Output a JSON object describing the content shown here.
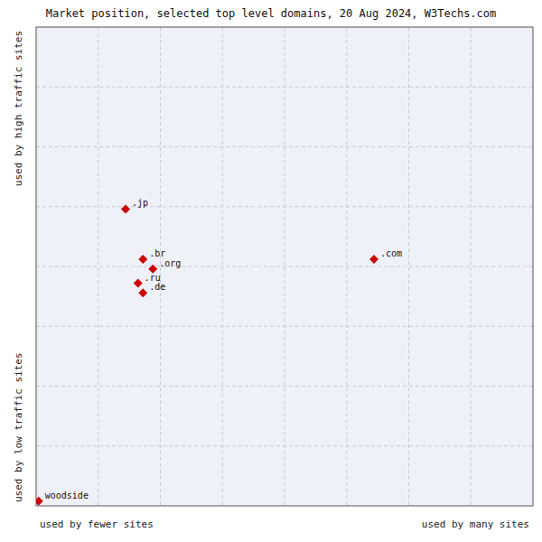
{
  "chart_data": {
    "type": "scatter",
    "title": "Market position, selected top level domains, 20 Aug 2024, W3Techs.com",
    "xlabel_left": "used by fewer sites",
    "xlabel_right": "used by many sites",
    "ylabel_top": "used by high traffic sites",
    "ylabel_bottom": "used by low traffic sites",
    "x": [
      0.18,
      0.215,
      0.235,
      0.205,
      0.215,
      0.68,
      0.005
    ],
    "values": [
      0.62,
      0.515,
      0.495,
      0.465,
      0.445,
      0.515,
      0.01
    ],
    "annotations": [
      ".jp",
      ".br",
      ".org",
      ".ru",
      ".de",
      ".com",
      "woodside"
    ],
    "color": "#cc0000",
    "marker": "diamond",
    "xlim": [
      0,
      1
    ],
    "ylim": [
      0,
      1
    ],
    "xticks": [
      0.125,
      0.25,
      0.375,
      0.5,
      0.625,
      0.75,
      0.875
    ],
    "yticks": [
      0.125,
      0.25,
      0.375,
      0.5,
      0.625,
      0.75,
      0.875
    ],
    "grid": true,
    "tick_labels": false
  }
}
